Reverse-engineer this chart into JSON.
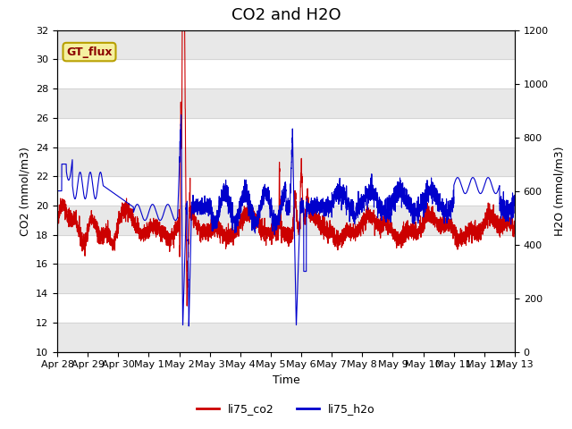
{
  "title": "CO2 and H2O",
  "xlabel": "Time",
  "ylabel_left": "CO2 (mmol/m3)",
  "ylabel_right": "H2O (mmol/m3)",
  "ylim_left": [
    10,
    32
  ],
  "ylim_right": [
    0,
    1200
  ],
  "annotation_text": "GT_flux",
  "legend_labels": [
    "li75_co2",
    "li75_h2o"
  ],
  "line_colors": [
    "#cc0000",
    "#0000cc"
  ],
  "background_color": "#ffffff",
  "grid_color": "#cccccc",
  "band_color": "#e8e8e8",
  "xtick_labels": [
    "Apr 28",
    "Apr 29",
    "Apr 30",
    "May 1",
    "May 2",
    "May 3",
    "May 4",
    "May 5",
    "May 6",
    "May 7",
    "May 8",
    "May 9",
    "May 10",
    "May 11",
    "May 12",
    "May 13"
  ],
  "title_fontsize": 13,
  "axis_fontsize": 9,
  "tick_fontsize": 8
}
